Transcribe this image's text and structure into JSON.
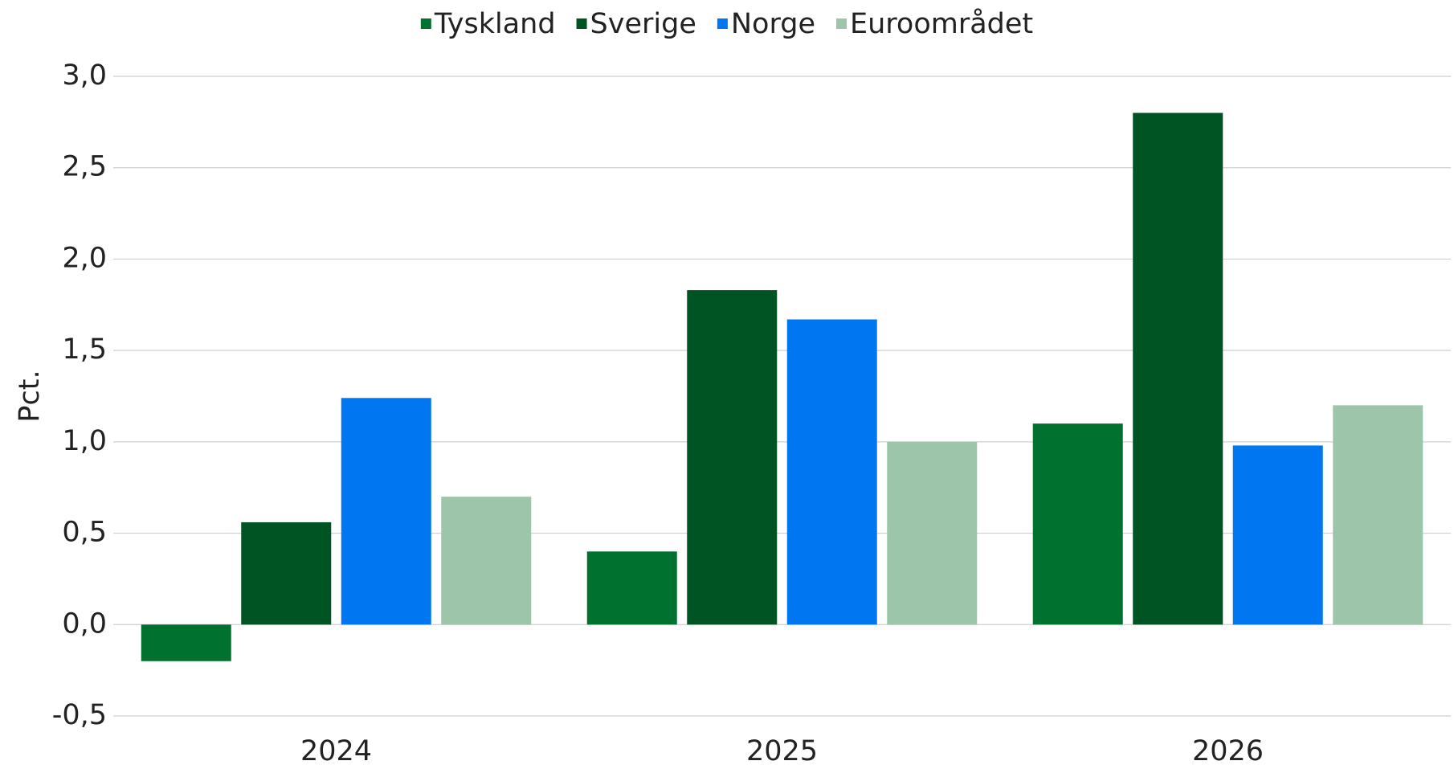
{
  "chart_data": {
    "type": "bar",
    "y_label": "Pct.",
    "categories": [
      "2024",
      "2025",
      "2026"
    ],
    "series": [
      {
        "name": "Tyskland",
        "color": "#00712e",
        "values": [
          -0.2,
          0.4,
          1.1
        ]
      },
      {
        "name": "Sverige",
        "color": "#005322",
        "values": [
          0.56,
          1.83,
          2.8
        ]
      },
      {
        "name": "Norge",
        "color": "#0077f0",
        "values": [
          1.24,
          1.67,
          0.98
        ]
      },
      {
        "name": "Euroområdet",
        "color": "#9cc5aa",
        "values": [
          0.7,
          1.0,
          1.2
        ]
      }
    ],
    "ylim": [
      -0.5,
      3.0
    ],
    "yticks": [
      {
        "value": -0.5,
        "label": "-0,5"
      },
      {
        "value": 0,
        "label": "0,0"
      },
      {
        "value": 0.5,
        "label": "0,5"
      },
      {
        "value": 1.0,
        "label": "1,0"
      },
      {
        "value": 1.5,
        "label": "1,5"
      },
      {
        "value": 2.0,
        "label": "2,0"
      },
      {
        "value": 2.5,
        "label": "2,5"
      },
      {
        "value": 3.0,
        "label": "3,0"
      }
    ],
    "grid": true,
    "legend": "top"
  }
}
